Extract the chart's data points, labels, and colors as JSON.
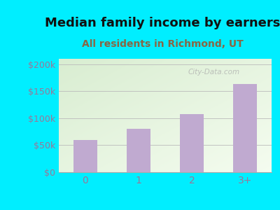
{
  "title": "Median family income by earners",
  "subtitle": "All residents in Richmond, UT",
  "categories": [
    "0",
    "1",
    "2",
    "3+"
  ],
  "values": [
    60000,
    80000,
    108000,
    163000
  ],
  "bar_color": "#c0aad0",
  "title_fontsize": 13,
  "subtitle_fontsize": 10,
  "ylabel_ticks": [
    0,
    50000,
    100000,
    150000,
    200000
  ],
  "ylabel_labels": [
    "$0",
    "$50k",
    "$100k",
    "$150k",
    "$200k"
  ],
  "ylim": [
    0,
    210000
  ],
  "background_outer": "#00eeff",
  "watermark": "City-Data.com",
  "tick_color": "#997799",
  "title_color": "#111111",
  "subtitle_color": "#886644"
}
